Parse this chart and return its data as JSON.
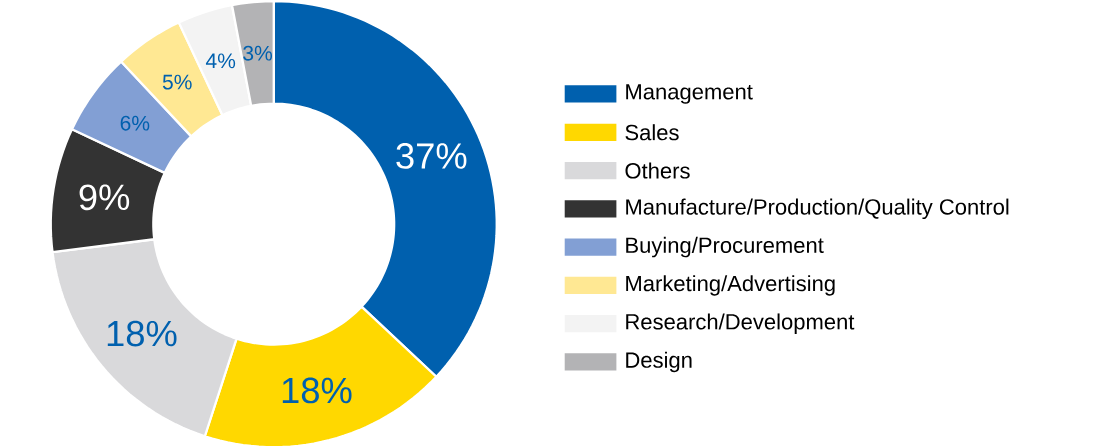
{
  "chart_data": {
    "type": "donut",
    "categories": [
      "Management",
      "Sales",
      "Others",
      "Manufacture/Production/Quality Control",
      "Buying/Procurement",
      "Marketing/Advertising",
      "Research/Development",
      "Design"
    ],
    "values": [
      37,
      18,
      18,
      9,
      6,
      5,
      4,
      3
    ],
    "colors": [
      "#0060ae",
      "#ffd800",
      "#d9d9db",
      "#333333",
      "#829fd4",
      "#ffe893",
      "#f3f3f3",
      "#b3b3b5"
    ],
    "value_labels": [
      "37%",
      "18%",
      "18%",
      "9%",
      "6%",
      "5%",
      "4%",
      "3%"
    ],
    "legend": "right"
  }
}
